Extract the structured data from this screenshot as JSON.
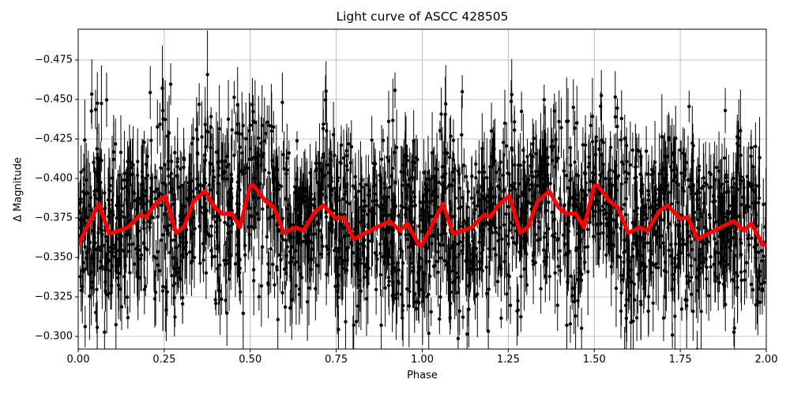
{
  "chart_data": {
    "type": "scatter",
    "title": "Light curve of ASCC 428505",
    "xlabel": "Phase",
    "ylabel": "Δ Magnitude",
    "xlim": [
      0.0,
      2.0
    ],
    "ylim": [
      -0.2945,
      -0.4955
    ],
    "y_inverted": true,
    "grid": true,
    "xticks": [
      "0.00",
      "0.25",
      "0.50",
      "0.75",
      "1.00",
      "1.25",
      "1.50",
      "1.75",
      "2.00"
    ],
    "yticks": [
      "−0.475",
      "−0.450",
      "−0.425",
      "−0.400",
      "−0.375",
      "−0.350",
      "−0.325",
      "−0.300"
    ],
    "series": [
      {
        "name": "observations",
        "style": "black points with vertical error bars",
        "color": "#000000",
        "description": "Dense scatter of phase-folded photometry, spread roughly -0.30 to -0.48 around the model curve"
      },
      {
        "name": "binned model",
        "style": "thick line",
        "color": "#ff0000",
        "x": [
          0.0,
          0.06,
          0.09,
          0.145,
          0.18,
          0.198,
          0.221,
          0.253,
          0.285,
          0.308,
          0.335,
          0.369,
          0.397,
          0.42,
          0.446,
          0.47,
          0.5,
          0.51,
          0.545,
          0.568,
          0.598,
          0.632,
          0.655,
          0.69,
          0.713,
          0.75,
          0.772,
          0.801,
          0.835,
          0.867,
          0.905,
          0.935,
          0.957,
          0.99,
          1.0
        ],
        "y": [
          -0.358,
          -0.384,
          -0.365,
          -0.369,
          -0.377,
          -0.3755,
          -0.383,
          -0.389,
          -0.3655,
          -0.3695,
          -0.3855,
          -0.392,
          -0.3815,
          -0.3775,
          -0.378,
          -0.369,
          -0.3955,
          -0.3955,
          -0.3855,
          -0.382,
          -0.3655,
          -0.369,
          -0.367,
          -0.3795,
          -0.383,
          -0.3745,
          -0.3755,
          -0.3615,
          -0.3655,
          -0.369,
          -0.373,
          -0.367,
          -0.3715,
          -0.358,
          -0.358
        ],
        "period_repeat": 2
      }
    ]
  }
}
